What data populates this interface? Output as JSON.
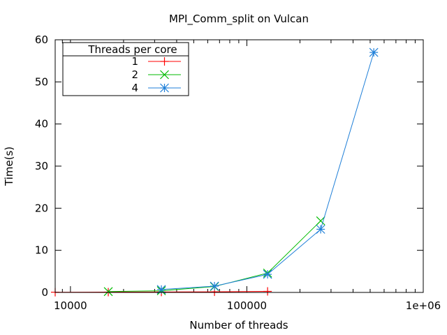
{
  "chart_data": {
    "type": "line",
    "title": "MPI_Comm_split on Vulcan",
    "xlabel": "Number of threads",
    "ylabel": "Time(s)",
    "xscale": "log",
    "xlim": [
      8192,
      1000000
    ],
    "ylim": [
      0,
      60
    ],
    "xticks": [
      10000,
      100000,
      1000000
    ],
    "xtick_labels": [
      "10000",
      "100000",
      "1e+06"
    ],
    "yticks": [
      0,
      10,
      20,
      30,
      40,
      50,
      60
    ],
    "grid": false,
    "legend": {
      "title": "Threads per core",
      "position": "top-left"
    },
    "series": [
      {
        "name": "1",
        "color": "#ff0000",
        "marker": "plus",
        "points": [
          [
            8192,
            0.05
          ],
          [
            16384,
            0.08
          ],
          [
            32768,
            0.1
          ],
          [
            65536,
            0.15
          ],
          [
            131072,
            0.25
          ]
        ]
      },
      {
        "name": "2",
        "color": "#00bb00",
        "marker": "x",
        "points": [
          [
            16384,
            0.2
          ],
          [
            32768,
            0.4
          ],
          [
            65536,
            1.4
          ],
          [
            131072,
            4.6
          ],
          [
            262144,
            17.0
          ]
        ]
      },
      {
        "name": "4",
        "color": "#1f7fd8",
        "marker": "star",
        "points": [
          [
            32768,
            0.7
          ],
          [
            65536,
            1.5
          ],
          [
            131072,
            4.3
          ],
          [
            262144,
            15.0
          ],
          [
            524288,
            57.0
          ]
        ]
      }
    ]
  }
}
